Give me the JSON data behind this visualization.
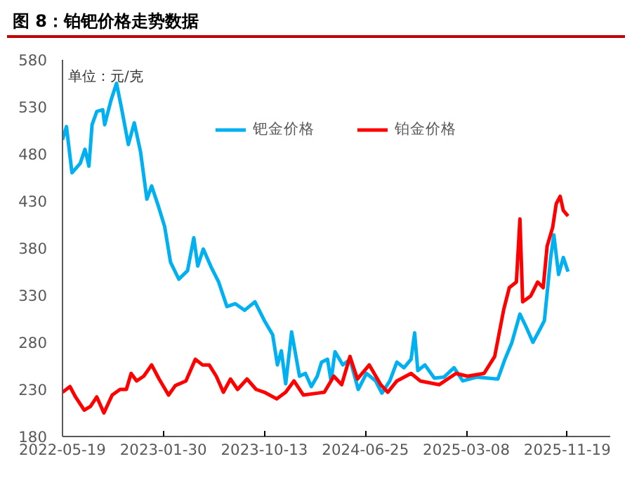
{
  "chart_data": {
    "type": "line",
    "title": "图 8：铂钯价格走势数据",
    "annotations": [
      "单位：元/克"
    ],
    "xlim": [
      "2022-05-19",
      "2026-03-08"
    ],
    "xticks": [
      "2022-05-19",
      "2023-01-30",
      "2023-10-13",
      "2024-06-25",
      "2025-03-08",
      "2025-11-19"
    ],
    "ylim": [
      180,
      580
    ],
    "yticks": [
      180,
      230,
      280,
      330,
      380,
      430,
      480,
      530,
      580
    ],
    "grid": false,
    "legend": "top",
    "marker": "none",
    "line_style": "solid",
    "series": [
      {
        "name": "钯金价格",
        "color": "#00b0f0",
        "x": [
          "2022-05-19",
          "2022-05-29",
          "2022-06-12",
          "2022-07-03",
          "2022-07-15",
          "2022-07-25",
          "2022-08-02",
          "2022-08-14",
          "2022-08-29",
          "2022-09-03",
          "2022-09-19",
          "2022-10-03",
          "2022-10-16",
          "2022-11-02",
          "2022-11-17",
          "2022-12-03",
          "2022-12-19",
          "2022-12-31",
          "2023-01-16",
          "2023-02-02",
          "2023-02-17",
          "2023-03-10",
          "2023-04-01",
          "2023-04-17",
          "2023-04-27",
          "2023-05-11",
          "2023-06-01",
          "2023-06-19",
          "2023-07-10",
          "2023-07-31",
          "2023-08-24",
          "2023-09-19",
          "2023-10-13",
          "2023-11-03",
          "2023-11-15",
          "2023-11-25",
          "2023-12-06",
          "2023-12-21",
          "2024-01-10",
          "2024-01-25",
          "2024-02-09",
          "2024-02-24",
          "2024-03-06",
          "2024-03-21",
          "2024-03-30",
          "2024-04-09",
          "2024-04-29",
          "2024-05-17",
          "2024-06-07",
          "2024-06-28",
          "2024-07-21",
          "2024-08-06",
          "2024-08-26",
          "2024-09-13",
          "2024-10-01",
          "2024-10-19",
          "2024-10-28",
          "2024-11-05",
          "2024-11-23",
          "2024-12-17",
          "2025-01-10",
          "2025-02-05",
          "2025-02-27",
          "2025-04-03",
          "2025-05-27",
          "2025-06-14",
          "2025-07-01",
          "2025-07-22",
          "2025-08-06",
          "2025-08-24",
          "2025-09-11",
          "2025-09-22",
          "2025-10-08",
          "2025-10-16",
          "2025-10-28",
          "2025-11-09",
          "2025-11-21"
        ],
        "values": [
          495,
          509,
          460,
          470,
          485,
          467,
          511,
          525,
          527,
          511,
          537,
          555,
          528,
          490,
          513,
          482,
          432,
          446,
          426,
          403,
          365,
          347,
          356,
          391,
          361,
          379,
          359,
          344,
          318,
          321,
          314,
          323,
          303,
          288,
          256,
          271,
          236,
          291,
          244,
          247,
          233,
          244,
          259,
          262,
          239,
          270,
          256,
          262,
          230,
          247,
          239,
          226,
          239,
          259,
          253,
          262,
          290,
          250,
          256,
          242,
          243,
          253,
          239,
          243,
          241,
          262,
          279,
          310,
          297,
          280,
          294,
          303,
          370,
          394,
          352,
          370,
          355
        ]
      },
      {
        "name": "铂金价格",
        "color": "#ff0000",
        "x": [
          "2022-05-19",
          "2022-06-07",
          "2022-06-21",
          "2022-07-13",
          "2022-07-29",
          "2022-08-14",
          "2022-09-01",
          "2022-09-22",
          "2022-10-12",
          "2022-10-28",
          "2022-11-09",
          "2022-11-23",
          "2022-12-11",
          "2022-12-31",
          "2023-01-19",
          "2023-02-12",
          "2023-03-01",
          "2023-03-28",
          "2023-04-21",
          "2023-05-09",
          "2023-05-26",
          "2023-06-13",
          "2023-07-01",
          "2023-07-19",
          "2023-08-06",
          "2023-08-30",
          "2023-09-22",
          "2023-10-13",
          "2023-11-13",
          "2023-12-06",
          "2023-12-27",
          "2024-01-20",
          "2024-02-24",
          "2024-03-13",
          "2024-04-06",
          "2024-04-26",
          "2024-05-17",
          "2024-06-05",
          "2024-07-05",
          "2024-08-03",
          "2024-08-21",
          "2024-09-13",
          "2024-10-19",
          "2024-11-11",
          "2024-12-29",
          "2025-02-10",
          "2025-03-11",
          "2025-04-22",
          "2025-05-19",
          "2025-06-11",
          "2025-06-25",
          "2025-07-13",
          "2025-07-22",
          "2025-07-29",
          "2025-08-18",
          "2025-09-05",
          "2025-09-19",
          "2025-09-29",
          "2025-10-13",
          "2025-10-22",
          "2025-11-01",
          "2025-11-09",
          "2025-11-21"
        ],
        "values": [
          227,
          233,
          222,
          208,
          212,
          222,
          205,
          224,
          230,
          230,
          247,
          239,
          244,
          256,
          241,
          224,
          234,
          239,
          262,
          256,
          256,
          244,
          227,
          241,
          230,
          241,
          230,
          227,
          220,
          227,
          239,
          224,
          226,
          227,
          244,
          235,
          265,
          241,
          256,
          235,
          227,
          239,
          247,
          239,
          235,
          247,
          244,
          247,
          265,
          315,
          338,
          344,
          411,
          323,
          329,
          344,
          338,
          382,
          402,
          427,
          435,
          420,
          414
        ]
      }
    ]
  }
}
